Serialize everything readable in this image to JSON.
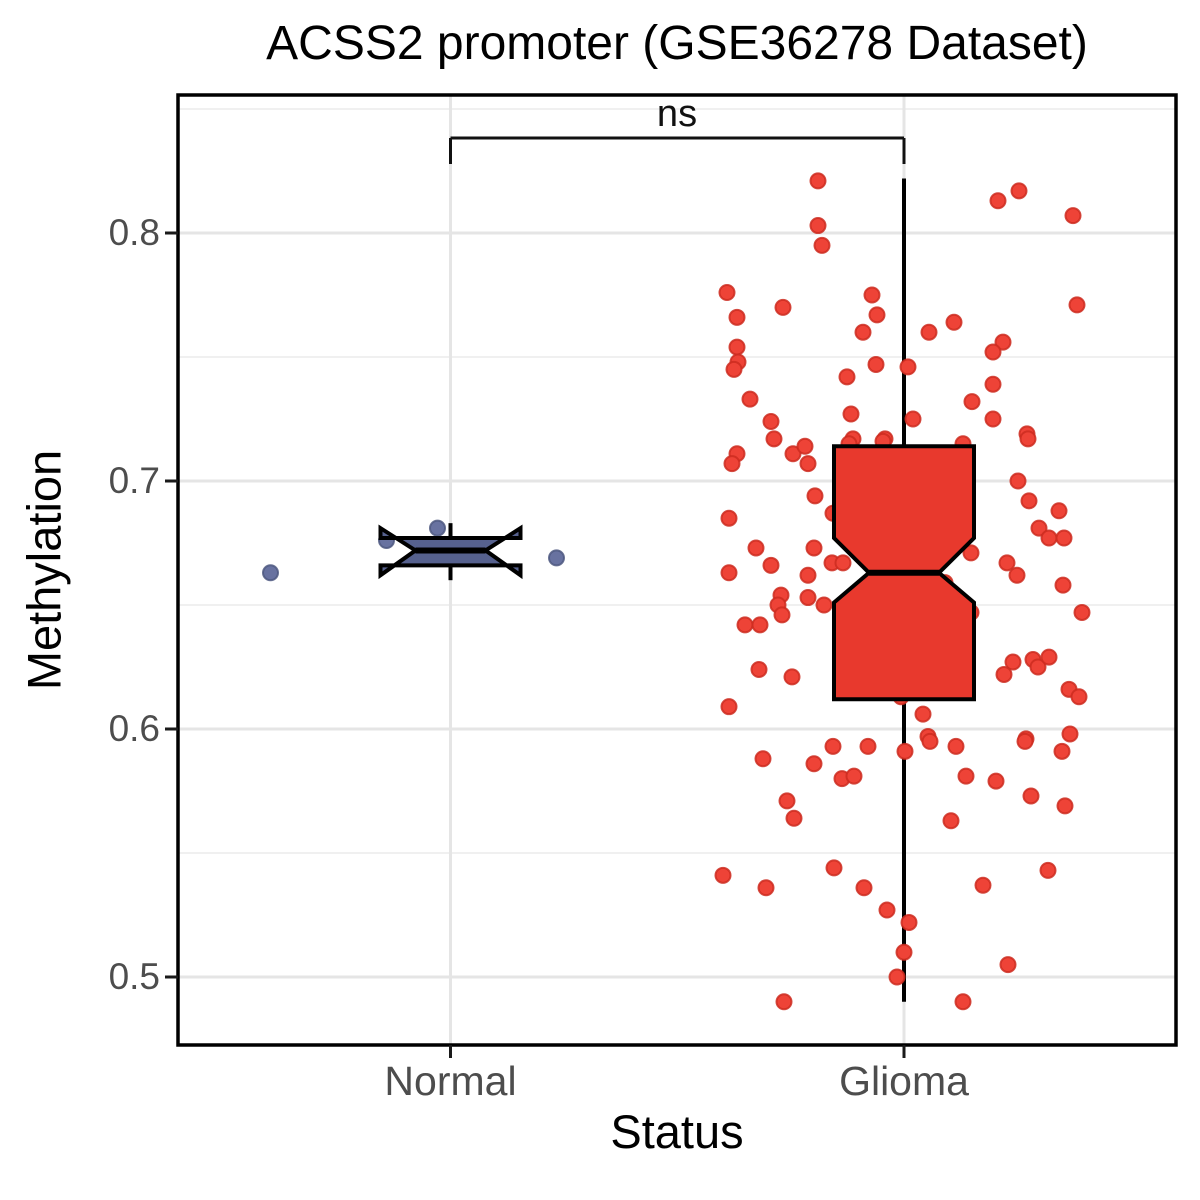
{
  "chart_data": {
    "type": "boxplot",
    "title": "ACSS2 promoter (GSE36278 Dataset)",
    "xlabel": "Status",
    "ylabel": "Methylation",
    "annotation": "ns",
    "categories": [
      "Normal",
      "Glioma"
    ],
    "y_ticks": [
      0.8,
      0.7,
      0.6,
      0.5
    ],
    "y_minor_ticks": [
      0.85,
      0.75,
      0.65,
      0.55
    ],
    "ylim": [
      0.473,
      0.856
    ],
    "legend": "none",
    "grid": "on",
    "groups": [
      {
        "name": "Normal",
        "box_fill": "#56618E",
        "point_fill": "#6872A0",
        "point_stroke": "#4E5880",
        "box": {
          "min": 0.66,
          "q1": 0.666,
          "median": 0.672,
          "q3": 0.677,
          "max": 0.683,
          "notch_low": 0.662,
          "notch_high": 0.681
        },
        "points": [
          [
            -180,
            0.663
          ],
          [
            -64,
            0.676
          ],
          [
            -13,
            0.681
          ],
          [
            106,
            0.669
          ]
        ]
      },
      {
        "name": "Glioma",
        "box_fill": "#E8392D",
        "point_fill": "#EE4337",
        "point_stroke": "#CD2C20",
        "box": {
          "min": 0.49,
          "q1": 0.612,
          "median": 0.663,
          "q3": 0.714,
          "max": 0.822,
          "notch_low": 0.651,
          "notch_high": 0.677
        },
        "points": [
          [
            -86,
            0.821
          ],
          [
            -86,
            0.803
          ],
          [
            -82,
            0.795
          ],
          [
            -177,
            0.776
          ],
          [
            -121,
            0.77
          ],
          [
            -167,
            0.766
          ],
          [
            -32,
            0.775
          ],
          [
            -27,
            0.767
          ],
          [
            -41,
            0.76
          ],
          [
            -167,
            0.754
          ],
          [
            -166,
            0.748
          ],
          [
            -170,
            0.745
          ],
          [
            -28,
            0.747
          ],
          [
            4,
            0.746
          ],
          [
            -57,
            0.742
          ],
          [
            25,
            0.76
          ],
          [
            -154,
            0.733
          ],
          [
            -53,
            0.727
          ],
          [
            -133,
            0.724
          ],
          [
            9,
            0.725
          ],
          [
            -130,
            0.717
          ],
          [
            -51,
            0.717
          ],
          [
            -19,
            0.717
          ],
          [
            115,
            0.817
          ],
          [
            94,
            0.813
          ],
          [
            169,
            0.807
          ],
          [
            173,
            0.771
          ],
          [
            50,
            0.764
          ],
          [
            99,
            0.756
          ],
          [
            89,
            0.752
          ],
          [
            89,
            0.739
          ],
          [
            68,
            0.732
          ],
          [
            89,
            0.725
          ],
          [
            123,
            0.719
          ],
          [
            -167,
            0.711
          ],
          [
            -172,
            0.707
          ],
          [
            -111,
            0.711
          ],
          [
            -99,
            0.714
          ],
          [
            -96,
            0.707
          ],
          [
            -55,
            0.715
          ],
          [
            -21,
            0.716
          ],
          [
            -89,
            0.694
          ],
          [
            -71,
            0.687
          ],
          [
            -175,
            0.685
          ],
          [
            -148,
            0.673
          ],
          [
            -90,
            0.673
          ],
          [
            -72,
            0.667
          ],
          [
            -61,
            0.667
          ],
          [
            -175,
            0.663
          ],
          [
            -133,
            0.666
          ],
          [
            -96,
            0.662
          ],
          [
            -14,
            0.663
          ],
          [
            -123,
            0.654
          ],
          [
            -96,
            0.653
          ],
          [
            -126,
            0.65
          ],
          [
            -122,
            0.646
          ],
          [
            -80,
            0.65
          ],
          [
            -159,
            0.642
          ],
          [
            -144,
            0.642
          ],
          [
            -145,
            0.624
          ],
          [
            -112,
            0.621
          ],
          [
            -175,
            0.609
          ],
          [
            -3,
            0.613
          ],
          [
            19,
            0.606
          ],
          [
            24,
            0.597
          ],
          [
            59,
            0.715
          ],
          [
            124,
            0.717
          ],
          [
            114,
            0.7
          ],
          [
            125,
            0.692
          ],
          [
            155,
            0.688
          ],
          [
            135,
            0.681
          ],
          [
            145,
            0.677
          ],
          [
            160,
            0.677
          ],
          [
            67,
            0.671
          ],
          [
            103,
            0.667
          ],
          [
            113,
            0.662
          ],
          [
            41,
            0.659
          ],
          [
            159,
            0.658
          ],
          [
            67,
            0.647
          ],
          [
            178,
            0.647
          ],
          [
            109,
            0.627
          ],
          [
            129,
            0.628
          ],
          [
            134,
            0.625
          ],
          [
            145,
            0.629
          ],
          [
            100,
            0.622
          ],
          [
            165,
            0.616
          ],
          [
            175,
            0.613
          ],
          [
            166,
            0.598
          ],
          [
            122,
            0.596
          ],
          [
            -141,
            0.588
          ],
          [
            -90,
            0.586
          ],
          [
            -71,
            0.593
          ],
          [
            -36,
            0.593
          ],
          [
            1,
            0.591
          ],
          [
            26,
            0.595
          ],
          [
            -62,
            0.58
          ],
          [
            -50,
            0.581
          ],
          [
            -117,
            0.571
          ],
          [
            -110,
            0.564
          ],
          [
            -181,
            0.541
          ],
          [
            -70,
            0.544
          ],
          [
            -138,
            0.536
          ],
          [
            -40,
            0.536
          ],
          [
            -17,
            0.527
          ],
          [
            5,
            0.522
          ],
          [
            0,
            0.51
          ],
          [
            -7,
            0.5
          ],
          [
            -120,
            0.49
          ],
          [
            52,
            0.593
          ],
          [
            121,
            0.595
          ],
          [
            158,
            0.591
          ],
          [
            62,
            0.581
          ],
          [
            92,
            0.579
          ],
          [
            127,
            0.573
          ],
          [
            161,
            0.569
          ],
          [
            47,
            0.563
          ],
          [
            144,
            0.543
          ],
          [
            79,
            0.537
          ],
          [
            104,
            0.505
          ],
          [
            59,
            0.49
          ]
        ]
      }
    ]
  }
}
